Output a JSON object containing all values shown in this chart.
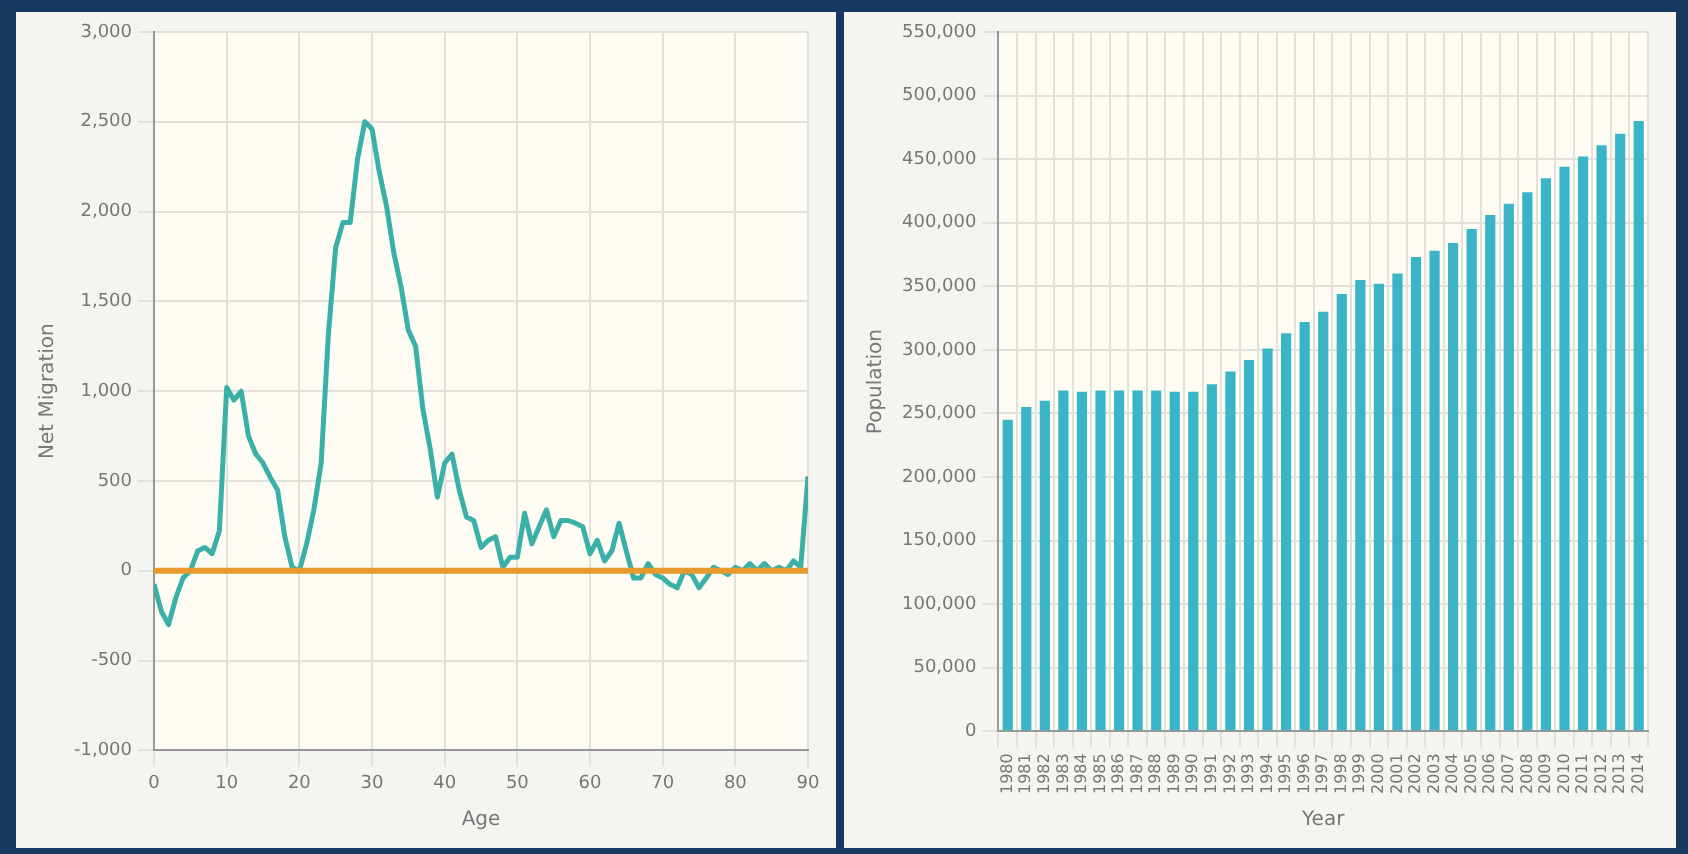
{
  "chart_data": [
    {
      "type": "line",
      "xlabel": "Age",
      "ylabel": "Net Migration",
      "x": [
        0,
        1,
        2,
        3,
        4,
        5,
        6,
        7,
        8,
        9,
        10,
        11,
        12,
        13,
        14,
        15,
        16,
        17,
        18,
        19,
        20,
        21,
        22,
        23,
        24,
        25,
        26,
        27,
        28,
        29,
        30,
        31,
        32,
        33,
        34,
        35,
        36,
        37,
        38,
        39,
        40,
        41,
        42,
        43,
        44,
        45,
        46,
        47,
        48,
        49,
        50,
        51,
        52,
        53,
        54,
        55,
        56,
        57,
        58,
        59,
        60,
        61,
        62,
        63,
        64,
        65,
        66,
        67,
        68,
        69,
        70,
        71,
        72,
        73,
        74,
        75,
        76,
        77,
        78,
        79,
        80,
        81,
        82,
        83,
        84,
        85,
        86,
        87,
        88,
        89,
        90
      ],
      "series": [
        {
          "color": "#3bb0a8",
          "values": [
            -75,
            -225,
            -300,
            -150,
            -40,
            0,
            110,
            130,
            95,
            225,
            1020,
            950,
            1000,
            750,
            650,
            600,
            520,
            450,
            190,
            20,
            0,
            150,
            340,
            600,
            1320,
            1800,
            1940,
            1940,
            2290,
            2500,
            2460,
            2220,
            2030,
            1770,
            1580,
            1340,
            1250,
            900,
            680,
            410,
            600,
            650,
            450,
            300,
            280,
            130,
            170,
            190,
            20,
            75,
            75,
            320,
            150,
            245,
            340,
            190,
            280,
            280,
            265,
            245,
            95,
            170,
            55,
            110,
            265,
            110,
            -40,
            -40,
            40,
            -20,
            -40,
            -75,
            -95,
            0,
            -20,
            -95,
            -40,
            20,
            0,
            -20,
            20,
            0,
            40,
            0,
            40,
            0,
            20,
            0,
            55,
            20,
            525
          ]
        }
      ],
      "xlim": [
        0,
        90
      ],
      "xticks": [
        0,
        10,
        20,
        30,
        40,
        50,
        60,
        70,
        80,
        90
      ],
      "ylim": [
        -1000,
        3000
      ],
      "yticks": [
        {
          "value": -1000,
          "label": "-1,000"
        },
        {
          "value": -500,
          "label": "-500"
        },
        0,
        {
          "value": 500,
          "label": "500"
        },
        {
          "value": 1000,
          "label": "1,000"
        },
        {
          "value": 1500,
          "label": "1,500"
        },
        {
          "value": 2000,
          "label": "2,000"
        },
        {
          "value": 2500,
          "label": "2,500"
        },
        {
          "value": 3000,
          "label": "3,000"
        }
      ],
      "ref_lines": [
        {
          "axis": "y",
          "value": 0,
          "color": "#e89a2c"
        }
      ],
      "grid": true,
      "legend": false,
      "marker": "none",
      "line_style": "solid"
    },
    {
      "type": "bar",
      "xlabel": "Year",
      "ylabel": "Population",
      "categories": [
        "1980",
        "1981",
        "1982",
        "1983",
        "1984",
        "1985",
        "1986",
        "1987",
        "1988",
        "1989",
        "1990",
        "1991",
        "1992",
        "1993",
        "1994",
        "1995",
        "1996",
        "1997",
        "1998",
        "1999",
        "2000",
        "2001",
        "2002",
        "2003",
        "2004",
        "2005",
        "2006",
        "2007",
        "2008",
        "2009",
        "2010",
        "2011",
        "2012",
        "2013",
        "2014"
      ],
      "series": [
        {
          "color": "#3ab5c8",
          "values": [
            245000,
            255000,
            260000,
            268000,
            267000,
            268000,
            268000,
            268000,
            268000,
            267000,
            267000,
            273000,
            283000,
            292000,
            301000,
            313000,
            322000,
            330000,
            344000,
            355000,
            352000,
            360000,
            373000,
            378000,
            384000,
            395000,
            406000,
            415000,
            424000,
            435000,
            444000,
            452000,
            461000,
            470000,
            480000
          ]
        }
      ],
      "ylim": [
        0,
        550000
      ],
      "yticks": [
        0,
        {
          "value": 50000,
          "label": "50,000"
        },
        {
          "value": 100000,
          "label": "100,000"
        },
        {
          "value": 150000,
          "label": "150,000"
        },
        {
          "value": 200000,
          "label": "200,000"
        },
        {
          "value": 250000,
          "label": "250,000"
        },
        {
          "value": 300000,
          "label": "300,000"
        },
        {
          "value": 350000,
          "label": "350,000"
        },
        {
          "value": 400000,
          "label": "400,000"
        },
        {
          "value": 450000,
          "label": "450,000"
        },
        {
          "value": 500000,
          "label": "500,000"
        },
        {
          "value": 550000,
          "label": "550,000"
        }
      ],
      "grid": true,
      "legend": false
    }
  ]
}
